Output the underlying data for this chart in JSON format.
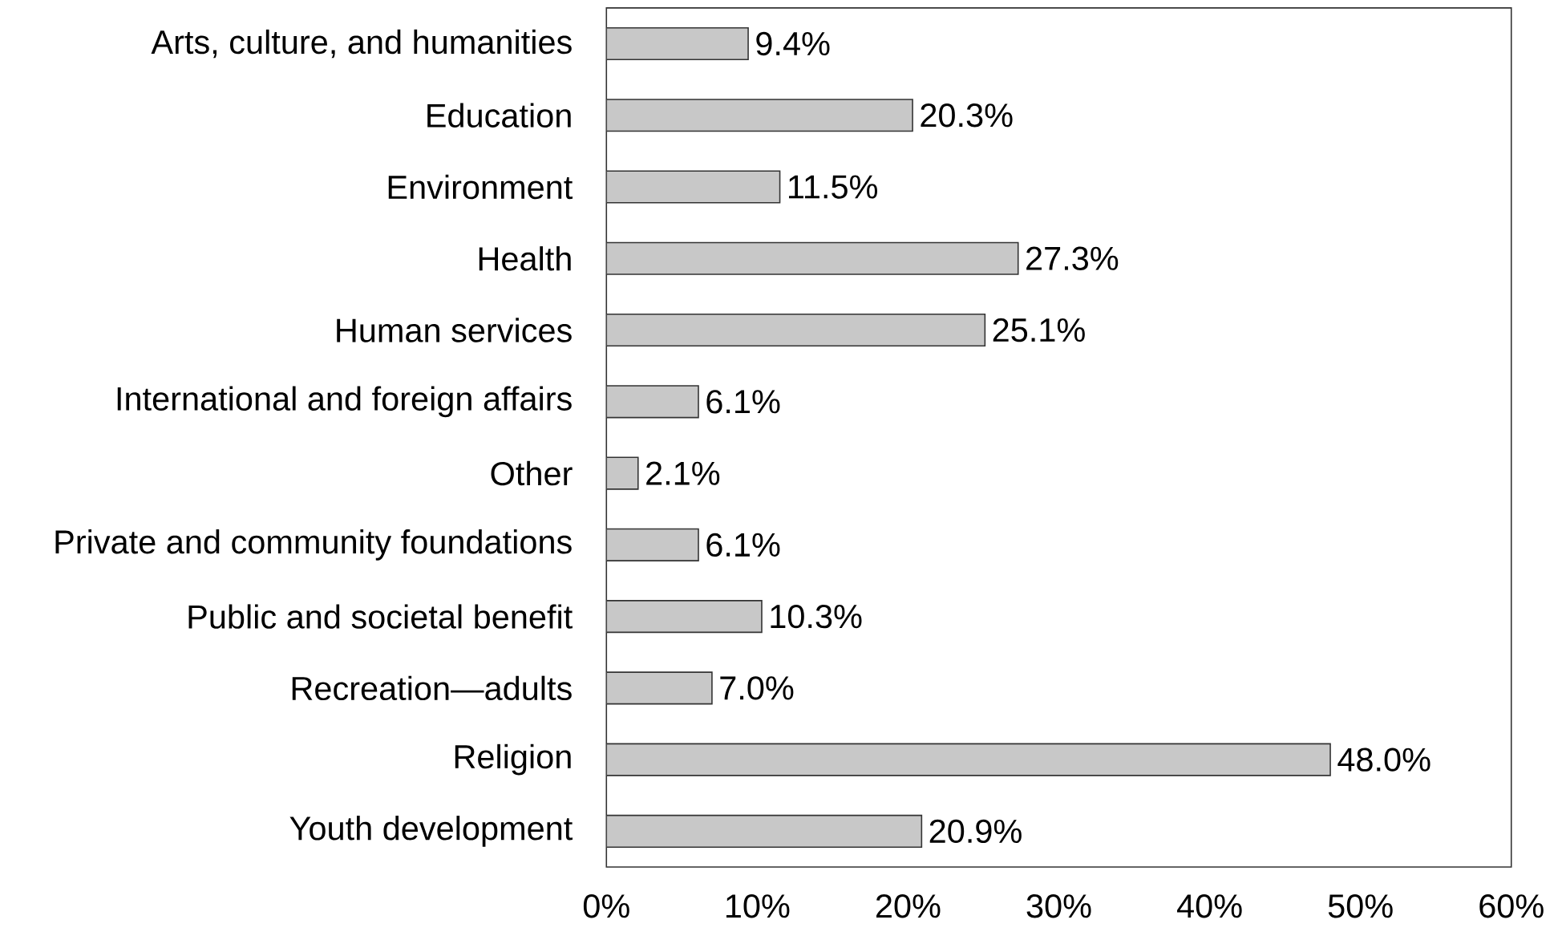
{
  "chart_data": {
    "type": "bar",
    "orientation": "horizontal",
    "categories": [
      "Arts, culture, and humanities",
      "Education",
      "Environment",
      "Health",
      "Human services",
      "International and foreign affairs",
      "Other",
      "Private and community foundations",
      "Public and societal benefit",
      "Recreation—adults",
      "Religion",
      "Youth development"
    ],
    "values": [
      9.4,
      20.3,
      11.5,
      27.3,
      25.1,
      6.1,
      2.1,
      6.1,
      10.3,
      7.0,
      48.0,
      20.9
    ],
    "value_labels": [
      "9.4%",
      "20.3%",
      "11.5%",
      "27.3%",
      "25.1%",
      "6.1%",
      "2.1%",
      "6.1%",
      "10.3%",
      "7.0%",
      "48.0%",
      "20.9%"
    ],
    "color": "#c8c8c8",
    "xlim": [
      0,
      60
    ],
    "xticks": [
      {
        "value": 0,
        "label": "0%"
      },
      {
        "value": 10,
        "label": "10%"
      },
      {
        "value": 20,
        "label": "20%"
      },
      {
        "value": 30,
        "label": "30%"
      },
      {
        "value": 40,
        "label": "40%"
      },
      {
        "value": 50,
        "label": "50%"
      },
      {
        "value": 60,
        "label": "60%"
      }
    ],
    "grid": false
  }
}
